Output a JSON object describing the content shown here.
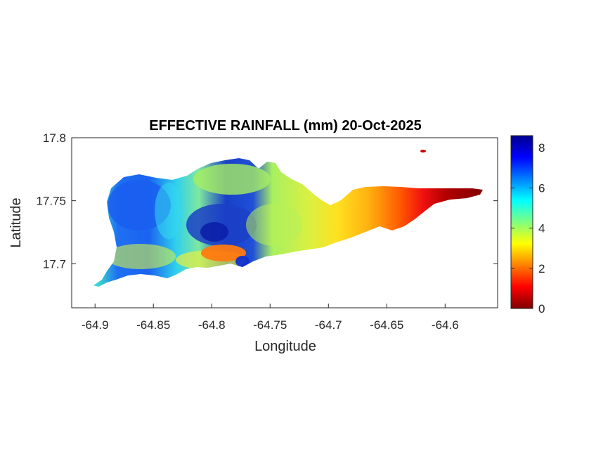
{
  "chart_data": {
    "type": "heatmap",
    "title": "EFFECTIVE RAINFALL (mm) 20-Oct-2025",
    "xlabel": "Longitude",
    "ylabel": "Latitude",
    "xlim": [
      -64.92,
      -64.555
    ],
    "ylim": [
      17.665,
      17.8
    ],
    "x_ticks": [
      -64.9,
      -64.85,
      -64.8,
      -64.75,
      -64.7,
      -64.65,
      -64.6
    ],
    "x_tick_labels": [
      "-64.9",
      "-64.85",
      "-64.8",
      "-64.75",
      "-64.7",
      "-64.65",
      "-64.6"
    ],
    "y_ticks": [
      17.7,
      17.75,
      17.8
    ],
    "y_tick_labels": [
      "17.7",
      "17.75",
      "17.8"
    ],
    "colorbar": {
      "colormap": "jet",
      "min": 0,
      "max": 8.6,
      "ticks": [
        0,
        2,
        4,
        6,
        8
      ],
      "tick_labels": [
        "0",
        "2",
        "4",
        "6",
        "8"
      ]
    },
    "grid": false,
    "field_samples": [
      {
        "lon": -64.88,
        "lat": 17.75,
        "value": 7.3
      },
      {
        "lon": -64.86,
        "lat": 17.73,
        "value": 7.0
      },
      {
        "lon": -64.84,
        "lat": 17.755,
        "value": 5.3
      },
      {
        "lon": -64.81,
        "lat": 17.735,
        "value": 7.6
      },
      {
        "lon": -64.79,
        "lat": 17.72,
        "value": 7.8
      },
      {
        "lon": -64.795,
        "lat": 17.705,
        "value": 1.8
      },
      {
        "lon": -64.77,
        "lat": 17.745,
        "value": 4.4
      },
      {
        "lon": -64.73,
        "lat": 17.75,
        "value": 3.8
      },
      {
        "lon": -64.7,
        "lat": 17.735,
        "value": 3.2
      },
      {
        "lon": -64.67,
        "lat": 17.73,
        "value": 2.6
      },
      {
        "lon": -64.64,
        "lat": 17.745,
        "value": 1.6
      },
      {
        "lon": -64.62,
        "lat": 17.748,
        "value": 0.8
      },
      {
        "lon": -64.59,
        "lat": 17.753,
        "value": 0.1
      }
    ]
  },
  "colors": {
    "axis": "#262626",
    "background": "#ffffff"
  }
}
